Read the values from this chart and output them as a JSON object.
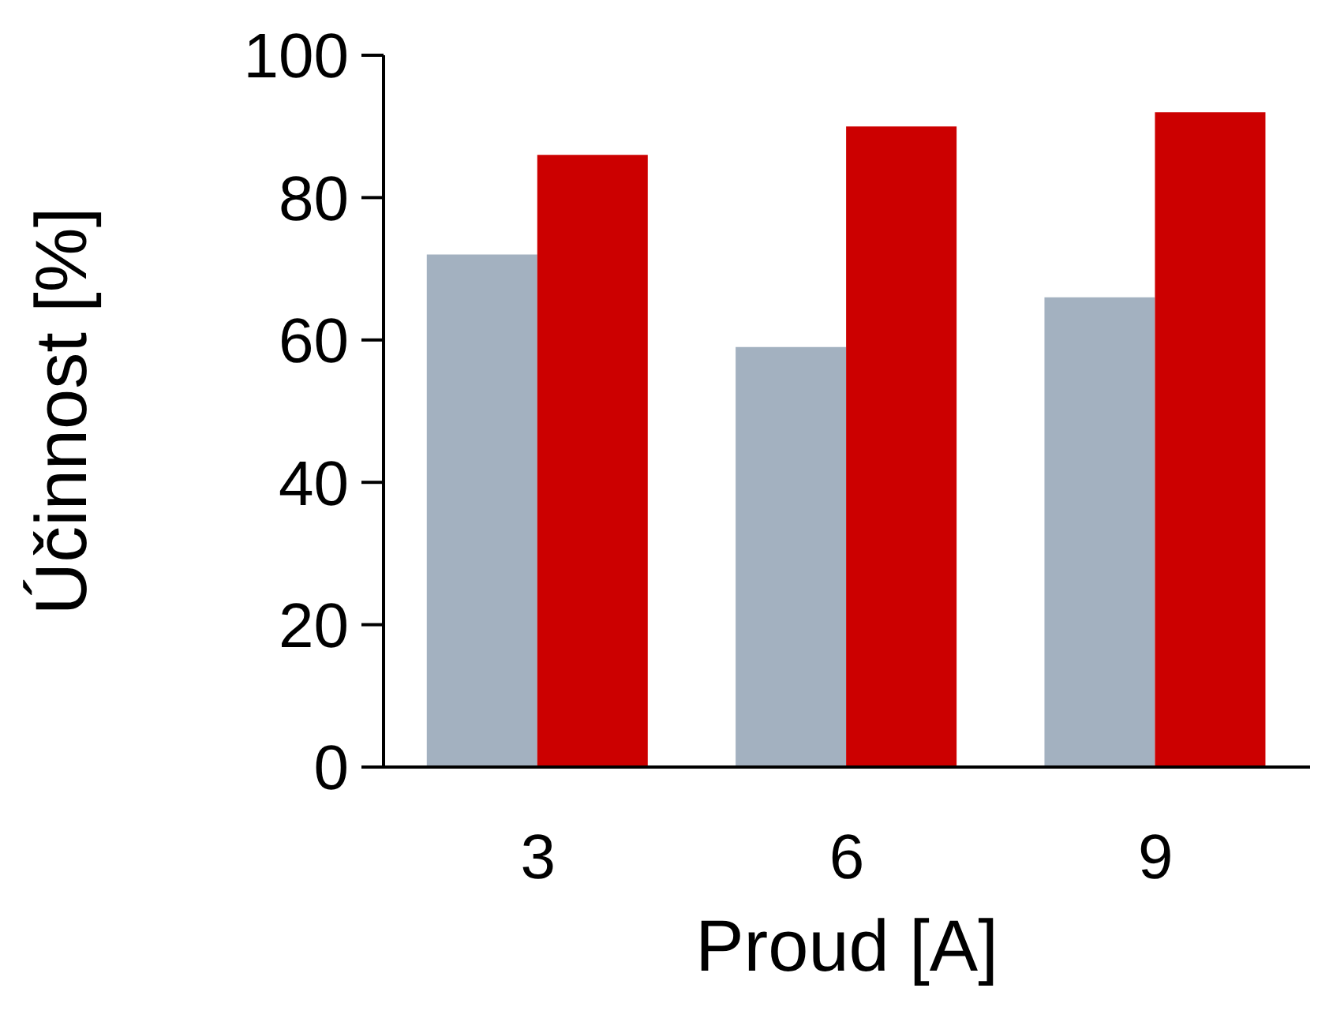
{
  "chart_data": {
    "type": "bar",
    "xlabel": "Proud [A]",
    "ylabel": "Účinnost [%]",
    "categories": [
      "3",
      "6",
      "9"
    ],
    "series": [
      {
        "color": "#a3b1c0",
        "values": [
          72,
          59,
          66
        ]
      },
      {
        "color": "#cc0000",
        "values": [
          86,
          90,
          92
        ]
      }
    ],
    "ylim": [
      0,
      100
    ],
    "yticks": [
      0,
      20,
      40,
      60,
      80,
      100
    ],
    "grid": false,
    "legend": false
  }
}
